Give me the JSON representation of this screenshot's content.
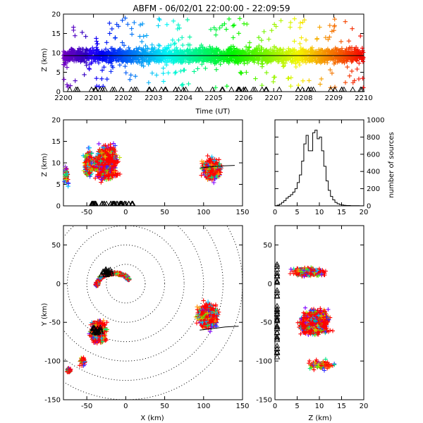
{
  "title": "ABFM - 06/02/01 22:00:00 - 22:09:59",
  "chart_data": [
    {
      "id": "time_height",
      "type": "scatter",
      "marker": "plus",
      "color_encoding": "time, rainbow from purple (22:00) to red (22:10)",
      "xlabel": "Time (UT)",
      "ylabel": "Z (km)",
      "xlim": [
        0,
        10
      ],
      "ylim": [
        0,
        20
      ],
      "x_tick_labels": [
        "2200",
        "2201",
        "2202",
        "2203",
        "2204",
        "2205",
        "2206",
        "2207",
        "2208",
        "2209",
        "2210"
      ],
      "y_ticks": [
        0,
        5,
        10,
        15,
        20
      ],
      "reference_line_z": 9.3,
      "triangle_markers_at_z": 0,
      "density": {
        "typical_z_range": [
          6,
          13
        ],
        "max_z": 20
      }
    },
    {
      "id": "x_height",
      "type": "scatter",
      "marker": "plus",
      "xlabel": "",
      "ylabel": "Z (km)",
      "xlim": [
        -80,
        150
      ],
      "ylim": [
        0,
        20
      ],
      "x_ticks": [
        -50,
        0,
        50,
        100,
        150
      ],
      "y_ticks": [
        0,
        5,
        10,
        15,
        20
      ],
      "clusters": [
        {
          "x_range": [
            -60,
            5
          ],
          "z_range": [
            0,
            18
          ],
          "note": "dense red core near x=-20"
        },
        {
          "x_range": [
            80,
            140
          ],
          "z_range": [
            3,
            14
          ]
        },
        {
          "x_range": [
            -80,
            -72
          ],
          "z_range": [
            3,
            11
          ]
        }
      ]
    },
    {
      "id": "altitude_histogram",
      "type": "line",
      "xlabel": "",
      "ylabel": "number of sources",
      "xlim": [
        0,
        20
      ],
      "ylim": [
        0,
        1000
      ],
      "x_ticks": [
        0,
        5,
        10,
        15,
        20
      ],
      "y_ticks": [
        0,
        200,
        400,
        600,
        800,
        1000
      ],
      "x": [
        0,
        0.5,
        1,
        1.5,
        2,
        2.5,
        3,
        3.5,
        4,
        4.5,
        5,
        5.5,
        6,
        6.5,
        7,
        7.5,
        8,
        8.5,
        9,
        9.5,
        10,
        10.5,
        11,
        11.5,
        12,
        12.5,
        13,
        13.5,
        14,
        14.5,
        15,
        15.5,
        16,
        17,
        18,
        19,
        20
      ],
      "values": [
        2,
        8,
        20,
        40,
        60,
        90,
        110,
        130,
        160,
        200,
        270,
        360,
        520,
        720,
        820,
        640,
        640,
        850,
        880,
        780,
        800,
        640,
        460,
        290,
        180,
        110,
        70,
        40,
        25,
        15,
        10,
        6,
        4,
        2,
        2,
        1,
        0
      ]
    },
    {
      "id": "plan_view",
      "type": "scatter",
      "marker": "plus",
      "xlabel": "X (km)",
      "ylabel": "Y (km)",
      "xlim": [
        -80,
        150
      ],
      "ylim": [
        -150,
        75
      ],
      "x_ticks": [
        -50,
        0,
        50,
        100,
        150
      ],
      "y_ticks": [
        -150,
        -100,
        -50,
        0,
        50
      ],
      "range_rings_km": [
        25,
        50,
        75,
        100,
        125,
        150
      ],
      "clusters": [
        {
          "x_range": [
            -45,
            15
          ],
          "y_range": [
            5,
            30
          ],
          "note": "arc"
        },
        {
          "x_range": [
            -60,
            -10
          ],
          "y_range": [
            -95,
            -35
          ]
        },
        {
          "x_range": [
            75,
            140
          ],
          "y_range": [
            -75,
            -5
          ]
        },
        {
          "x_range": [
            -80,
            -65
          ],
          "y_range": [
            -120,
            -100
          ]
        }
      ]
    },
    {
      "id": "z_y_view",
      "type": "scatter",
      "marker": "plus",
      "xlabel": "Z (km)",
      "ylabel": "",
      "xlim": [
        0,
        20
      ],
      "ylim": [
        -150,
        75
      ],
      "x_ticks": [
        0,
        5,
        10,
        15,
        20
      ],
      "y_ticks": [
        -150,
        -100,
        -50,
        0,
        50
      ],
      "clusters": [
        {
          "z_range": [
            1,
            15
          ],
          "y_range": [
            0,
            35
          ]
        },
        {
          "z_range": [
            1,
            19
          ],
          "y_range": [
            -120,
            -10
          ],
          "note": "dense red core near z=9, y=-50"
        }
      ]
    }
  ]
}
